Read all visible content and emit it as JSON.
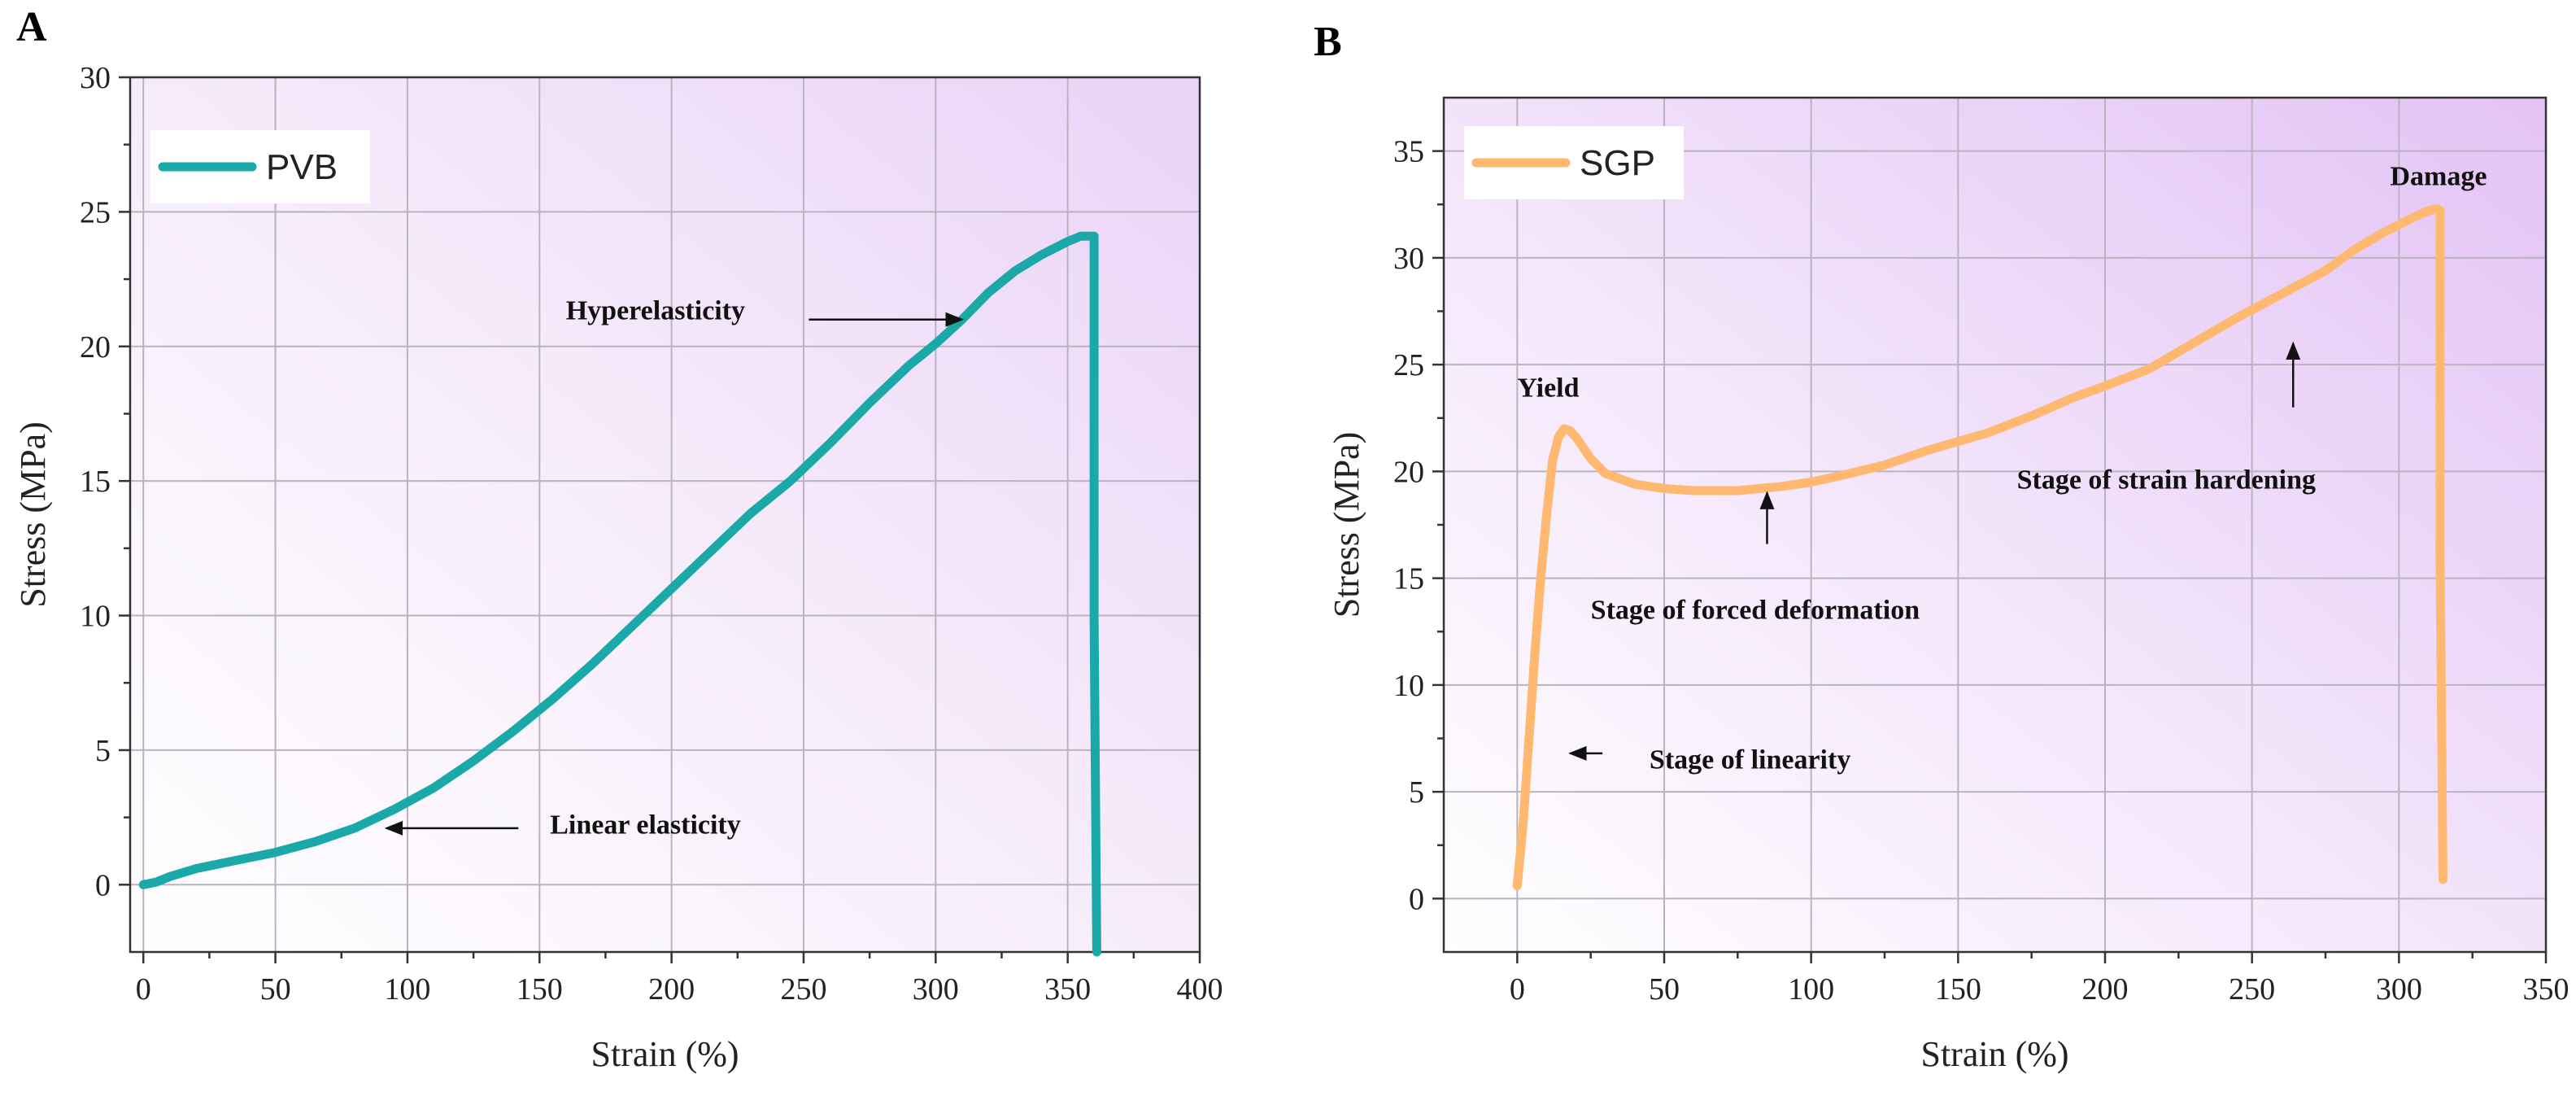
{
  "chart_data": [
    {
      "panel": "A",
      "type": "line",
      "xlabel": "Strain (%)",
      "ylabel": "Stress (MPa)",
      "xlim": [
        -5,
        400
      ],
      "ylim": [
        -2.5,
        30
      ],
      "xticks": [
        0,
        50,
        100,
        150,
        200,
        250,
        300,
        350,
        400
      ],
      "yticks": [
        0,
        5,
        10,
        15,
        20,
        25,
        30
      ],
      "grid": true,
      "legend_position": "top-left",
      "series": [
        {
          "name": "PVB",
          "color": "#1aa8a8",
          "x": [
            0,
            5,
            10,
            20,
            35,
            50,
            65,
            80,
            95,
            110,
            125,
            140,
            155,
            170,
            185,
            200,
            215,
            230,
            245,
            260,
            275,
            290,
            300,
            310,
            320,
            330,
            340,
            350,
            355,
            360,
            360,
            361
          ],
          "y": [
            0,
            0.1,
            0.3,
            0.6,
            0.9,
            1.2,
            1.6,
            2.1,
            2.8,
            3.6,
            4.6,
            5.7,
            6.9,
            8.2,
            9.6,
            11.0,
            12.4,
            13.8,
            15.0,
            16.4,
            17.9,
            19.3,
            20.1,
            21.0,
            22.0,
            22.8,
            23.4,
            23.9,
            24.1,
            24.1,
            10.0,
            -2.5
          ]
        }
      ],
      "annotations": [
        {
          "text": "Hyperelasticity",
          "x": 160,
          "y": 21.0,
          "arrow_from": [
            252,
            21.0
          ],
          "arrow_to": [
            310,
            21.0
          ]
        },
        {
          "text": "Linear elasticity",
          "x": 154,
          "y": 1.9,
          "arrow_from": [
            142,
            2.1
          ],
          "arrow_to": [
            92,
            2.1
          ]
        }
      ]
    },
    {
      "panel": "B",
      "type": "line",
      "xlabel": "Strain (%)",
      "ylabel": "Stress (MPa)",
      "xlim": [
        -25,
        350
      ],
      "ylim": [
        -2.5,
        37.5
      ],
      "xticks": [
        0,
        50,
        100,
        150,
        200,
        250,
        300,
        350
      ],
      "yticks": [
        0,
        5,
        10,
        15,
        20,
        25,
        30,
        35
      ],
      "grid": true,
      "legend_position": "top-left",
      "series": [
        {
          "name": "SGP",
          "color": "#ffb870",
          "x": [
            0,
            2,
            4,
            6,
            8,
            10,
            12,
            14,
            16,
            18,
            20,
            25,
            30,
            40,
            50,
            60,
            75,
            90,
            100,
            110,
            125,
            140,
            150,
            160,
            175,
            190,
            200,
            215,
            230,
            245,
            260,
            275,
            285,
            295,
            305,
            310,
            313,
            314,
            314,
            315
          ],
          "y": [
            0.6,
            3.5,
            7.5,
            11.5,
            15.0,
            18.0,
            20.5,
            21.6,
            22.0,
            21.9,
            21.6,
            20.6,
            19.9,
            19.4,
            19.2,
            19.1,
            19.1,
            19.3,
            19.5,
            19.8,
            20.3,
            21.0,
            21.4,
            21.8,
            22.6,
            23.5,
            24.0,
            24.8,
            26.0,
            27.2,
            28.3,
            29.4,
            30.4,
            31.2,
            31.9,
            32.2,
            32.3,
            32.2,
            16.0,
            0.9
          ]
        }
      ],
      "annotations": [
        {
          "text": "Yield",
          "x": 0,
          "y": 23.5
        },
        {
          "text": "Damage",
          "x": 297,
          "y": 33.4
        },
        {
          "text": "Stage of forced deformation",
          "x": 25,
          "y": 13.1,
          "arrow_from": [
            85,
            16.6
          ],
          "arrow_to": [
            85,
            19.0
          ]
        },
        {
          "text": "Stage of strain hardening",
          "x": 170,
          "y": 19.2,
          "arrow_from": [
            264,
            23.0
          ],
          "arrow_to": [
            264,
            26.0
          ]
        },
        {
          "text": "Stage of linearity",
          "x": 45,
          "y": 6.1,
          "arrow_from": [
            29,
            6.8
          ],
          "arrow_to": [
            18,
            6.8
          ]
        }
      ]
    }
  ]
}
